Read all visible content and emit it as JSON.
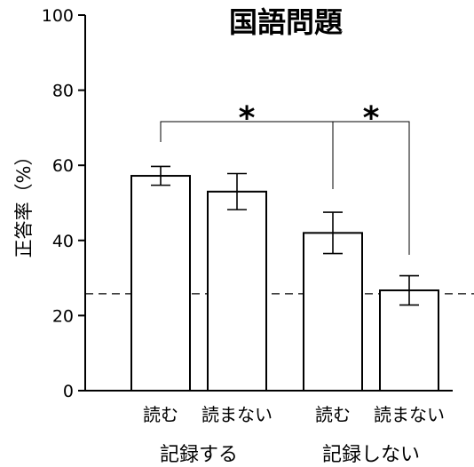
{
  "chart_data": {
    "type": "bar",
    "title": "国語問題",
    "ylabel": "正答率（%）",
    "xlabel": "",
    "ylim": [
      0,
      100
    ],
    "yticks": [
      0,
      20,
      40,
      60,
      80,
      100
    ],
    "categories": [
      "読む",
      "読まない",
      "読む",
      "読まない"
    ],
    "groups": [
      {
        "label": "記録する",
        "categories": [
          0,
          1
        ]
      },
      {
        "label": "記録しない",
        "categories": [
          2,
          3
        ]
      }
    ],
    "values": [
      57.2,
      53.0,
      42.0,
      26.7
    ],
    "errors": [
      2.5,
      4.8,
      5.5,
      3.9
    ],
    "reference_line": {
      "value": 25.8,
      "style": "dashed"
    },
    "significance": [
      {
        "from": 0,
        "to": 2,
        "label": "*"
      },
      {
        "from": 2,
        "to": 3,
        "label": "*"
      }
    ],
    "grid": false,
    "bar_color": "#ffffff",
    "edge_color": "#000000"
  }
}
